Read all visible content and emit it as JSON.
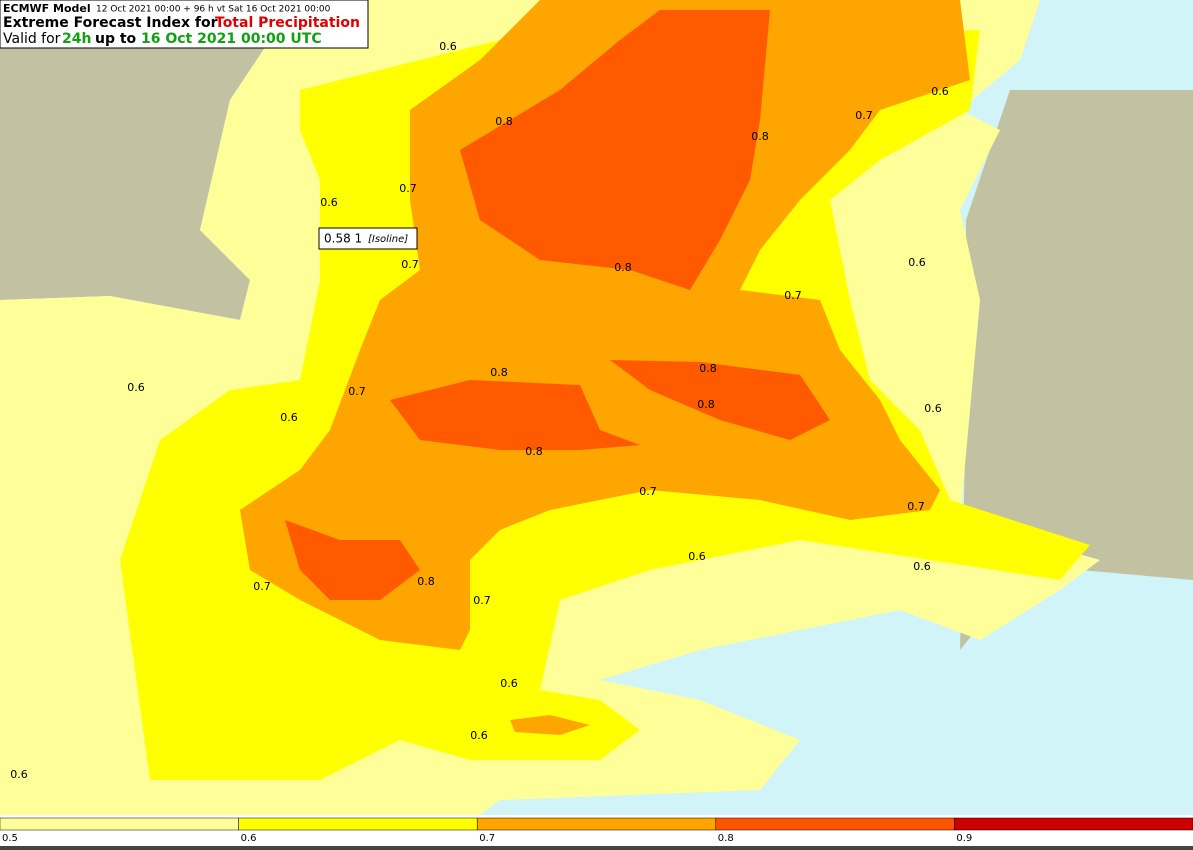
{
  "header": {
    "model": "ECMWF Model",
    "run": "12 Oct 2021 00:00 + 96 h vt Sat 16 Oct 2021 00:00",
    "product_prefix": "Extreme Forecast Index for",
    "product": "Total Precipitation",
    "valid_prefix": "Valid for",
    "period": "24h",
    "valid_mid": "up to",
    "valid_time": "16 Oct 2021 00:00 UTC"
  },
  "tooltip": {
    "value": "0.58 1",
    "kind": "[Isoline]"
  },
  "contour_labels": [
    "0.6",
    "0.8",
    "0.7",
    "0.6",
    "0.7",
    "0.8",
    "0.8",
    "0.7",
    "0.6",
    "0.6",
    "0.7",
    "0.6",
    "0.7",
    "0.6",
    "0.8",
    "0.8",
    "0.8",
    "0.8",
    "0.6",
    "0.7",
    "0.7",
    "0.6",
    "0.6",
    "0.7",
    "0.8",
    "0.7",
    "0.6",
    "0.6",
    "0.6"
  ],
  "legend": [
    {
      "label": "0.5",
      "color": "#ffff99"
    },
    {
      "label": "0.6",
      "color": "#ffff00"
    },
    {
      "label": "0.7",
      "color": "#ffa500"
    },
    {
      "label": "0.8",
      "color": "#ff5500"
    },
    {
      "label": "0.9",
      "color": "#cc0000"
    }
  ]
}
